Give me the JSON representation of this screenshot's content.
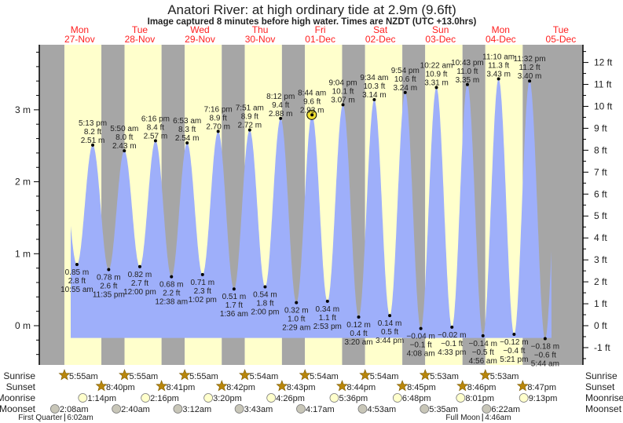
{
  "title": "Anatori River: at high  ordinary tide at 2.9m (9.6ft)",
  "subtitle": "Image captured 8 minutes before high water. Times are NZDT (UTC +13.0hrs)",
  "colors": {
    "day": "#ffffcc",
    "night": "#a6a6a6",
    "tide": "#9eaffa",
    "day_label": "#ff2020",
    "sun_icon": "#b8860b",
    "moonrise_icon": "#ffffcc",
    "moonset_icon": "#c8c6b8"
  },
  "chart_data": {
    "type": "area",
    "title": "Anatori River: at high  ordinary tide at 2.9m (9.6ft)",
    "days": [
      {
        "dow": "Mon",
        "date": "27-Nov"
      },
      {
        "dow": "Tue",
        "date": "28-Nov"
      },
      {
        "dow": "Wed",
        "date": "29-Nov"
      },
      {
        "dow": "Thu",
        "date": "30-Nov"
      },
      {
        "dow": "Fri",
        "date": "01-Dec"
      },
      {
        "dow": "Sat",
        "date": "02-Dec"
      },
      {
        "dow": "Sun",
        "date": "03-Dec"
      },
      {
        "dow": "Mon",
        "date": "04-Dec"
      },
      {
        "dow": "Tue",
        "date": "05-Dec"
      }
    ],
    "left_axis": {
      "unit": "m",
      "ticks": [
        "0 m",
        "1 m",
        "2 m",
        "3 m"
      ],
      "range": [
        -0.55,
        3.9
      ]
    },
    "right_axis": {
      "unit": "ft",
      "ticks": [
        "-1 ft",
        "0 ft",
        "1 ft",
        "2 ft",
        "3 ft",
        "4 ft",
        "5 ft",
        "6 ft",
        "7 ft",
        "8 ft",
        "9 ft",
        "10 ft",
        "11 ft",
        "12 ft"
      ]
    },
    "extremes": [
      {
        "type": "low",
        "day": 0,
        "time": "10:55 am",
        "m": 0.85,
        "m_label": "0.85 m",
        "ft_label": "2.8 ft"
      },
      {
        "type": "high",
        "day": 0,
        "time": "5:13 pm",
        "m": 2.51,
        "m_label": "2.51 m",
        "ft_label": "8.2 ft"
      },
      {
        "type": "low",
        "day": 0,
        "time": "11:35 pm",
        "m": 0.78,
        "m_label": "0.78 m",
        "ft_label": "2.6 ft"
      },
      {
        "type": "high",
        "day": 1,
        "time": "5:50 am",
        "m": 2.43,
        "m_label": "2.43 m",
        "ft_label": "8.0 ft"
      },
      {
        "type": "low",
        "day": 1,
        "time": "12:00 pm",
        "m": 0.82,
        "m_label": "0.82 m",
        "ft_label": "2.7 ft"
      },
      {
        "type": "high",
        "day": 1,
        "time": "6:16 pm",
        "m": 2.57,
        "m_label": "2.57 m",
        "ft_label": "8.4 ft"
      },
      {
        "type": "low",
        "day": 2,
        "time": "12:38 am",
        "m": 0.68,
        "m_label": "0.68 m",
        "ft_label": "2.2 ft"
      },
      {
        "type": "high",
        "day": 2,
        "time": "6:53 am",
        "m": 2.54,
        "m_label": "2.54 m",
        "ft_label": "8.3 ft"
      },
      {
        "type": "low",
        "day": 2,
        "time": "1:02 pm",
        "m": 0.71,
        "m_label": "0.71 m",
        "ft_label": "2.3 ft"
      },
      {
        "type": "high",
        "day": 2,
        "time": "7:16 pm",
        "m": 2.7,
        "m_label": "2.70 m",
        "ft_label": "8.9 ft"
      },
      {
        "type": "low",
        "day": 3,
        "time": "1:36 am",
        "m": 0.51,
        "m_label": "0.51 m",
        "ft_label": "1.7 ft"
      },
      {
        "type": "high",
        "day": 3,
        "time": "7:51 am",
        "m": 2.72,
        "m_label": "2.72 m",
        "ft_label": "8.9 ft"
      },
      {
        "type": "low",
        "day": 3,
        "time": "2:00 pm",
        "m": 0.54,
        "m_label": "0.54 m",
        "ft_label": "1.8 ft"
      },
      {
        "type": "high",
        "day": 3,
        "time": "8:12 pm",
        "m": 2.88,
        "m_label": "2.88 m",
        "ft_label": "9.4 ft"
      },
      {
        "type": "low",
        "day": 4,
        "time": "2:29 am",
        "m": 0.32,
        "m_label": "0.32 m",
        "ft_label": "1.0 ft"
      },
      {
        "type": "high",
        "day": 4,
        "time": "8:44 am",
        "m": 2.93,
        "m_label": "2.93 m",
        "ft_label": "9.6 ft"
      },
      {
        "type": "low",
        "day": 4,
        "time": "2:53 pm",
        "m": 0.34,
        "m_label": "0.34 m",
        "ft_label": "1.1 ft"
      },
      {
        "type": "high",
        "day": 4,
        "time": "9:04 pm",
        "m": 3.07,
        "m_label": "3.07 m",
        "ft_label": "10.1 ft"
      },
      {
        "type": "low",
        "day": 5,
        "time": "3:20 am",
        "m": 0.12,
        "m_label": "0.12 m",
        "ft_label": "0.4 ft"
      },
      {
        "type": "high",
        "day": 5,
        "time": "9:34 am",
        "m": 3.14,
        "m_label": "3.14 m",
        "ft_label": "10.3 ft"
      },
      {
        "type": "low",
        "day": 5,
        "time": "3:44 pm",
        "m": 0.14,
        "m_label": "0.14 m",
        "ft_label": "0.5 ft"
      },
      {
        "type": "high",
        "day": 5,
        "time": "9:54 pm",
        "m": 3.24,
        "m_label": "3.24 m",
        "ft_label": "10.6 ft"
      },
      {
        "type": "low",
        "day": 6,
        "time": "4:08 am",
        "m": -0.04,
        "m_label": "−0.04 m",
        "ft_label": "−0.1 ft"
      },
      {
        "type": "high",
        "day": 6,
        "time": "10:22 am",
        "m": 3.31,
        "m_label": "3.31 m",
        "ft_label": "10.9 ft"
      },
      {
        "type": "low",
        "day": 6,
        "time": "4:33 pm",
        "m": -0.02,
        "m_label": "−0.02 m",
        "ft_label": "−0.1 ft"
      },
      {
        "type": "high",
        "day": 6,
        "time": "10:43 pm",
        "m": 3.35,
        "m_label": "3.35 m",
        "ft_label": "11.0 ft"
      },
      {
        "type": "low",
        "day": 7,
        "time": "4:56 am",
        "m": -0.14,
        "m_label": "−0.14 m",
        "ft_label": "−0.5 ft"
      },
      {
        "type": "high",
        "day": 7,
        "time": "11:10 am",
        "m": 3.43,
        "m_label": "3.43 m",
        "ft_label": "11.3 ft"
      },
      {
        "type": "low",
        "day": 7,
        "time": "5:21 pm",
        "m": -0.12,
        "m_label": "−0.12 m",
        "ft_label": "−0.4 ft"
      },
      {
        "type": "high",
        "day": 7,
        "time": "11:32 pm",
        "m": 3.4,
        "m_label": "3.40 m",
        "ft_label": "11.2 ft"
      },
      {
        "type": "low",
        "day": 8,
        "time": "5:44 am",
        "m": -0.18,
        "m_label": "−0.18 m",
        "ft_label": "−0.6 ft"
      }
    ],
    "current_marker": {
      "day": 4,
      "time": "8:36 am",
      "m": 2.93
    },
    "rows": {
      "labels": {
        "sunrise": "Sunrise",
        "sunset": "Sunset",
        "moonrise": "Moonrise",
        "moonset": "Moonset"
      },
      "sunrise": [
        "5:55am",
        "5:55am",
        "5:55am",
        "5:54am",
        "5:54am",
        "5:54am",
        "5:53am",
        "5:53am"
      ],
      "sunset": [
        "8:40pm",
        "8:41pm",
        "8:42pm",
        "8:43pm",
        "8:44pm",
        "8:45pm",
        "8:46pm",
        "8:47pm"
      ],
      "moonrise": [
        "1:14pm",
        "2:16pm",
        "3:20pm",
        "4:26pm",
        "5:36pm",
        "6:48pm",
        "8:01pm",
        "9:13pm"
      ],
      "moonset": [
        "2:08am",
        "2:40am",
        "3:12am",
        "3:43am",
        "4:17am",
        "4:53am",
        "5:35am",
        "6:22am"
      ]
    },
    "moon_phases": [
      {
        "name": "First Quarter",
        "day": 0,
        "time": "6:02am"
      },
      {
        "name": "Full Moon",
        "day": 7,
        "time": "4:46am"
      }
    ]
  }
}
